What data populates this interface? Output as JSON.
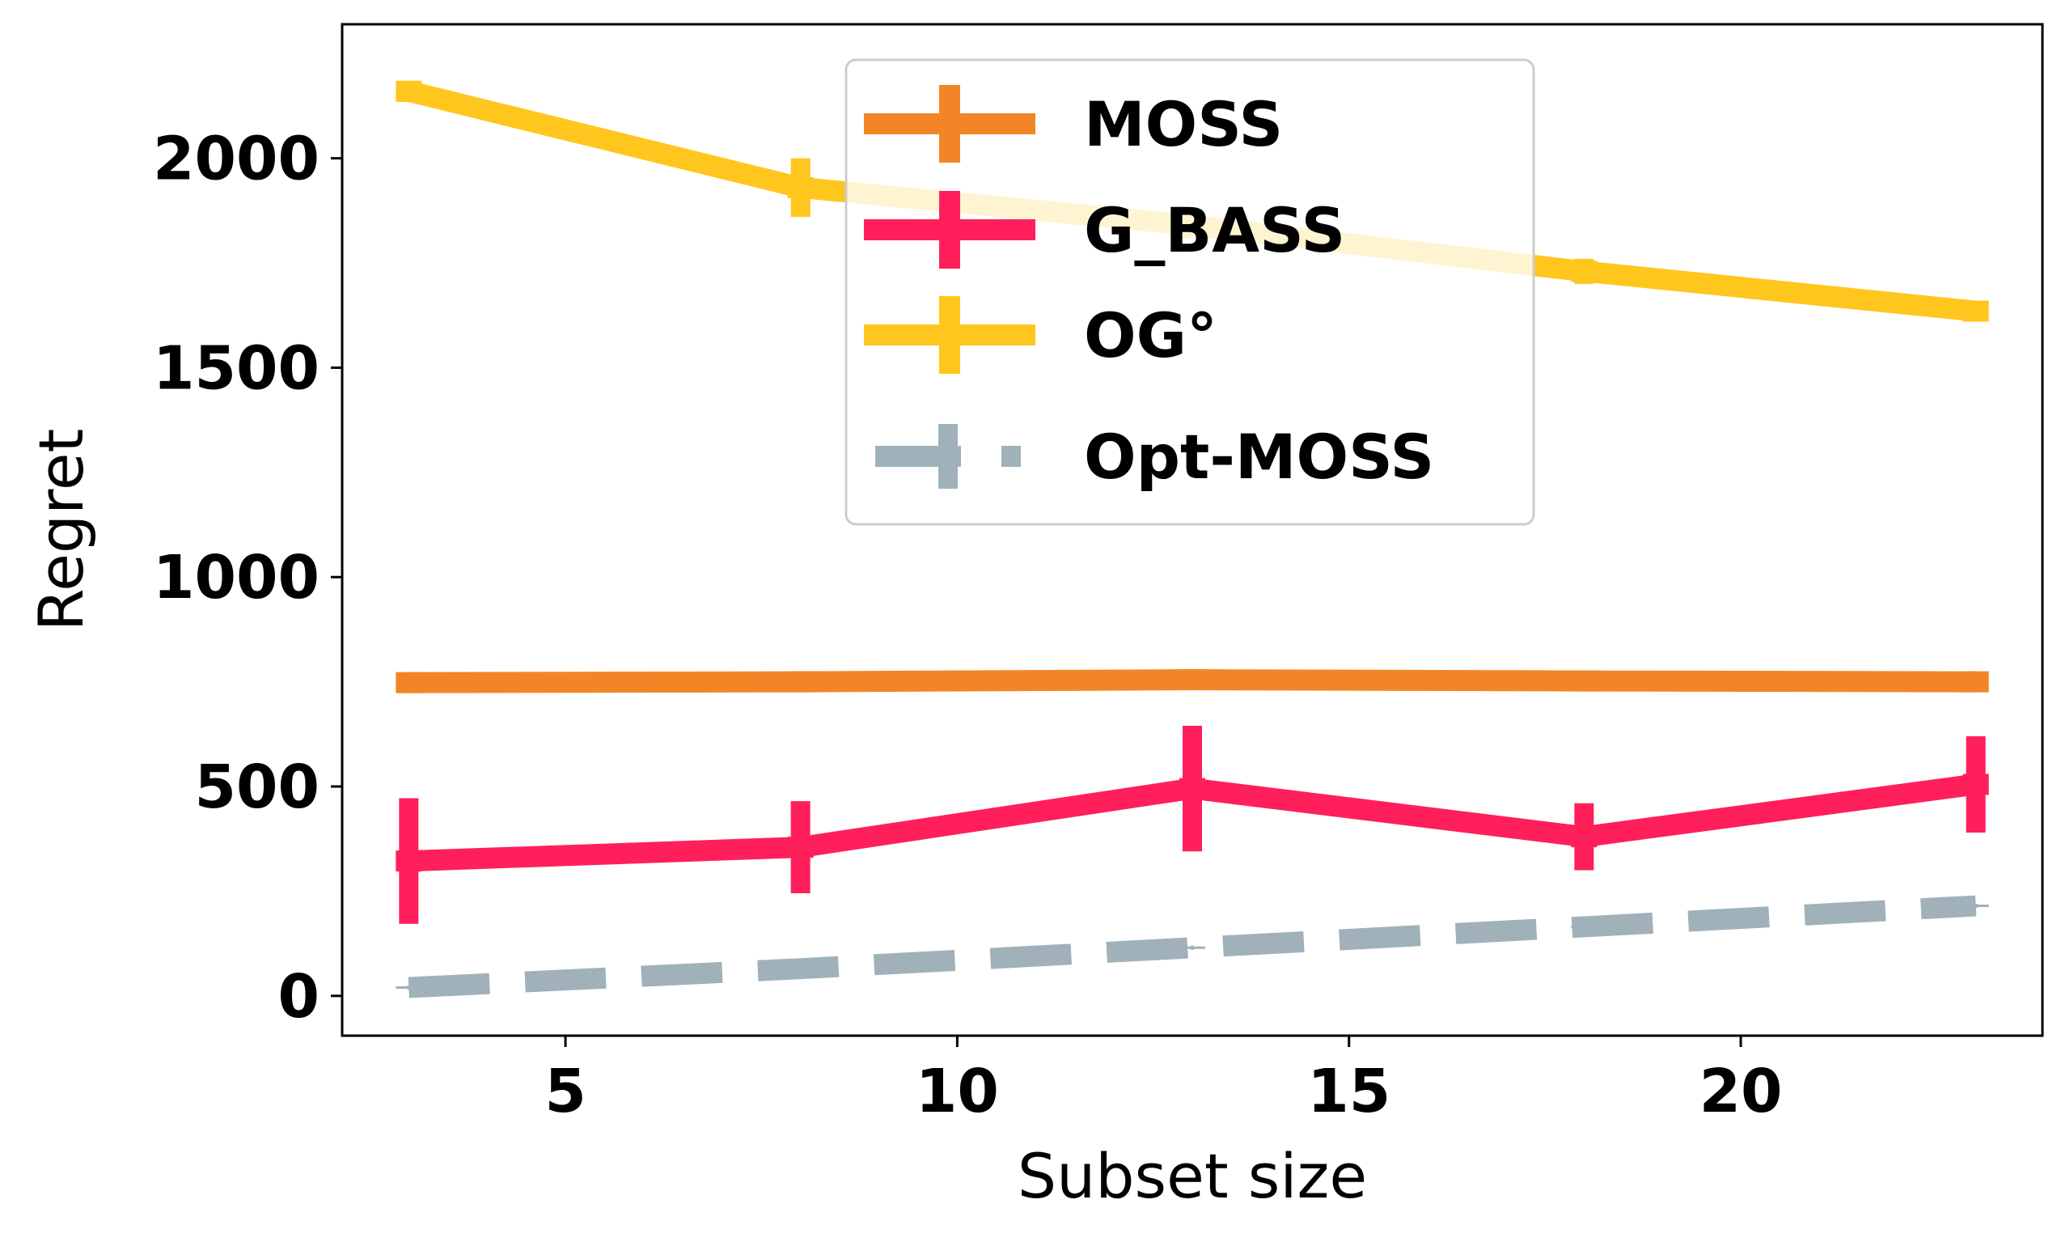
{
  "chart_data": {
    "type": "line",
    "title": "",
    "xlabel": "Subset size",
    "ylabel": "Regret",
    "x": [
      3,
      8,
      13,
      18,
      23
    ],
    "xlim": [
      2.15,
      23.85
    ],
    "ylim": [
      -95,
      2320
    ],
    "xticks": [
      5,
      10,
      15,
      20
    ],
    "yticks": [
      0,
      500,
      1000,
      1500,
      2000
    ],
    "grid": false,
    "legend_position": "upper center",
    "series": [
      {
        "name": "MOSS",
        "color": "#F28627",
        "style": "solid",
        "values": [
          748,
          750,
          755,
          752,
          750
        ],
        "errors": [
          10,
          10,
          12,
          10,
          10
        ]
      },
      {
        "name": "G_BASS",
        "color": "#FF1F5B",
        "style": "solid",
        "values": [
          322,
          355,
          495,
          380,
          505
        ],
        "errors": [
          150,
          110,
          150,
          80,
          115
        ]
      },
      {
        "name": "OG°",
        "color": "#FFC61E",
        "style": "solid",
        "values": [
          2160,
          1930,
          1840,
          1730,
          1635
        ],
        "errors": [
          25,
          70,
          30,
          30,
          25
        ]
      },
      {
        "name": "Opt-MOSS",
        "color": "#A0B1BA",
        "style": "dashed",
        "values": [
          20,
          65,
          115,
          165,
          215
        ],
        "errors": [
          5,
          5,
          5,
          5,
          5
        ]
      }
    ]
  }
}
